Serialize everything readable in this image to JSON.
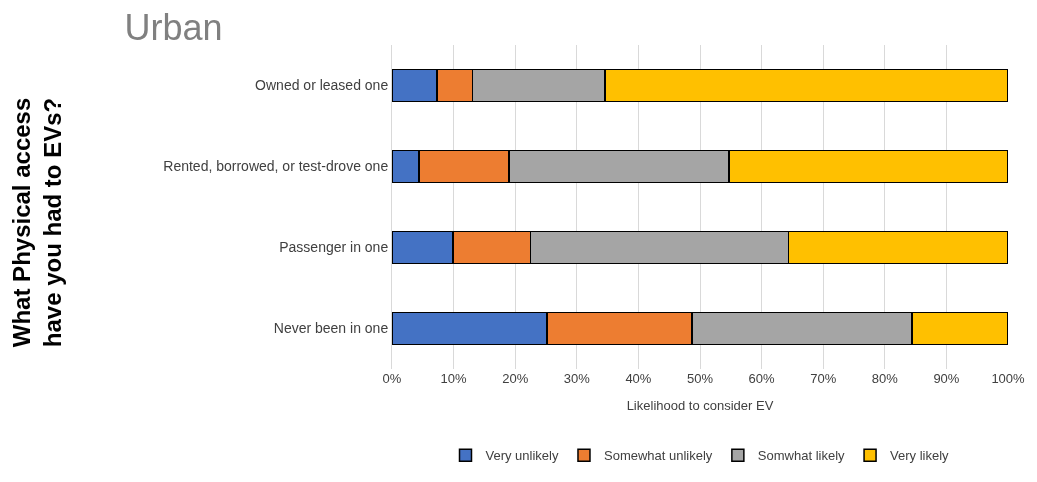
{
  "chart_data": {
    "type": "bar",
    "orientation": "horizontal",
    "stacked": true,
    "title": "Urban",
    "xlabel": "Likelihood to consider EV",
    "ylabel": "What Physical access have you had to EVs?",
    "categories": [
      "Owned or leased one",
      "Rented, borrowed, or test-drove one",
      "Passenger in one",
      "Never been in one"
    ],
    "series": [
      {
        "name": "Very unlikely",
        "color": "#4472c4",
        "values": [
          7.3,
          4.4,
          9.9,
          25.2
        ]
      },
      {
        "name": "Somewhat unlikely",
        "color": "#ed7d31",
        "values": [
          5.8,
          14.6,
          12.6,
          23.5
        ]
      },
      {
        "name": "Somwhat likely",
        "color": "#a5a5a5",
        "values": [
          21.5,
          35.7,
          41.9,
          35.7
        ]
      },
      {
        "name": "Very likely",
        "color": "#ffc000",
        "values": [
          65.4,
          45.3,
          35.6,
          15.6
        ]
      }
    ],
    "xlim": [
      0,
      100
    ],
    "xticks": [
      {
        "value": 0,
        "label": "0%"
      },
      {
        "value": 10,
        "label": "10%"
      },
      {
        "value": 20,
        "label": "20%"
      },
      {
        "value": 30,
        "label": "30%"
      },
      {
        "value": 40,
        "label": "40%"
      },
      {
        "value": 50,
        "label": "50%"
      },
      {
        "value": 60,
        "label": "60%"
      },
      {
        "value": 70,
        "label": "70%"
      },
      {
        "value": 80,
        "label": "80%"
      },
      {
        "value": 90,
        "label": "90%"
      },
      {
        "value": 100,
        "label": "100%"
      }
    ],
    "grid": "x",
    "legend": "bottom"
  }
}
